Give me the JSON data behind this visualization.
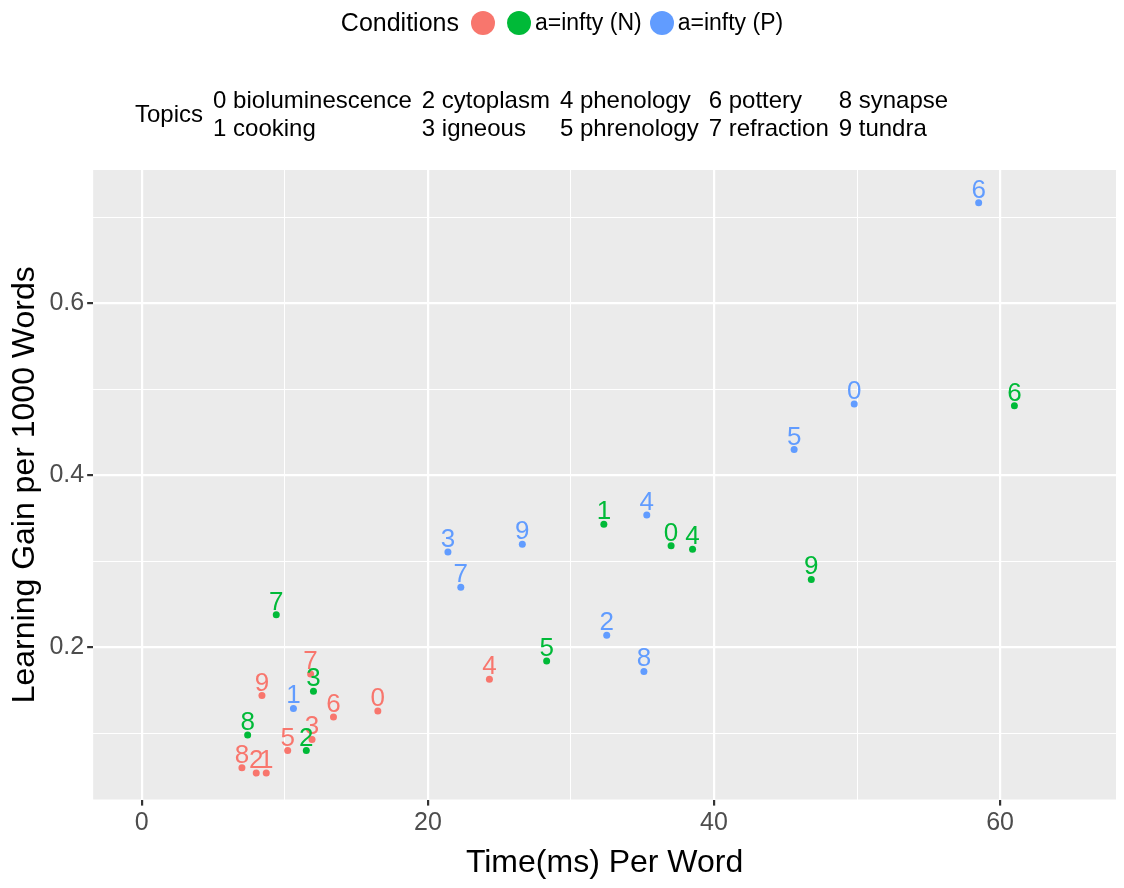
{
  "chart_data": {
    "type": "scatter",
    "xlabel": "Time(ms) Per Word",
    "ylabel": "Learning Gain per 1000 Words",
    "legend_title": "Conditions",
    "legend": "top",
    "annotations": [
      "Topics",
      "0 bioluminescence",
      "1 cooking",
      "2 cytoplasm",
      "3 igneous",
      "4 phenology",
      "5 phrenology",
      "6 pottery",
      "7 refraction",
      "8 synapse",
      "9 tundra",
      {
        "text": "0",
        "x": 16.5,
        "y": 0.126
      },
      {
        "text": "1",
        "x": 8.7,
        "y": 0.054
      },
      {
        "text": "2",
        "x": 8.0,
        "y": 0.054
      },
      {
        "text": "3",
        "x": 11.9,
        "y": 0.093
      },
      {
        "text": "4",
        "x": 24.3,
        "y": 0.163
      },
      {
        "text": "5",
        "x": 10.2,
        "y": 0.08
      },
      {
        "text": "6",
        "x": 13.4,
        "y": 0.119
      },
      {
        "text": "7",
        "x": 11.8,
        "y": 0.169
      },
      {
        "text": "8",
        "x": 7.0,
        "y": 0.06
      },
      {
        "text": "9",
        "x": 8.4,
        "y": 0.144
      },
      {
        "text": "0",
        "x": 37.0,
        "y": 0.318
      },
      {
        "text": "1",
        "x": 32.3,
        "y": 0.343
      },
      {
        "text": "2",
        "x": 11.5,
        "y": 0.08
      },
      {
        "text": "3",
        "x": 12.0,
        "y": 0.149
      },
      {
        "text": "4",
        "x": 38.5,
        "y": 0.314
      },
      {
        "text": "5",
        "x": 28.3,
        "y": 0.184
      },
      {
        "text": "6",
        "x": 61.0,
        "y": 0.481
      },
      {
        "text": "7",
        "x": 9.4,
        "y": 0.238
      },
      {
        "text": "8",
        "x": 7.4,
        "y": 0.098
      },
      {
        "text": "9",
        "x": 46.8,
        "y": 0.279
      },
      {
        "text": "0",
        "x": 49.8,
        "y": 0.483
      },
      {
        "text": "1",
        "x": 10.6,
        "y": 0.129
      },
      {
        "text": "2",
        "x": 32.5,
        "y": 0.214
      },
      {
        "text": "3",
        "x": 21.4,
        "y": 0.311
      },
      {
        "text": "4",
        "x": 35.3,
        "y": 0.354
      },
      {
        "text": "5",
        "x": 45.6,
        "y": 0.43
      },
      {
        "text": "6",
        "x": 58.5,
        "y": 0.717
      },
      {
        "text": "7",
        "x": 22.3,
        "y": 0.27
      },
      {
        "text": "8",
        "x": 35.1,
        "y": 0.172
      },
      {
        "text": "9",
        "x": 26.6,
        "y": 0.32
      }
    ],
    "xlim": [
      -3.4,
      68.1
    ],
    "ylim": [
      0.023,
      0.755
    ],
    "xticks": [
      0,
      {
        "value": 10,
        "label": null
      },
      20,
      {
        "value": 30,
        "label": null
      },
      40,
      {
        "value": 50,
        "label": null
      },
      60
    ],
    "yticks": [
      {
        "value": 0.1,
        "label": null
      },
      {
        "value": 0.2,
        "label": "0.2"
      },
      {
        "value": 0.3,
        "label": null
      },
      {
        "value": 0.4,
        "label": "0.4"
      },
      {
        "value": 0.5,
        "label": null
      },
      {
        "value": 0.6,
        "label": "0.6"
      },
      {
        "value": 0.7,
        "label": null
      }
    ],
    "grid": true,
    "series": [
      {
        "color": "#f8766d",
        "x": [
          16.5,
          8.7,
          8.0,
          11.9,
          24.3,
          10.2,
          13.4,
          11.8,
          7.0,
          8.4
        ],
        "values": [
          0.126,
          0.054,
          0.054,
          0.093,
          0.163,
          0.08,
          0.119,
          0.169,
          0.06,
          0.144
        ]
      },
      {
        "name": "a=infty (N)",
        "color": "#00ba38",
        "x": [
          37.0,
          32.3,
          11.5,
          12.0,
          38.5,
          28.3,
          61.0,
          9.4,
          7.4,
          46.8
        ],
        "values": [
          0.318,
          0.343,
          0.08,
          0.149,
          0.314,
          0.184,
          0.481,
          0.238,
          0.098,
          0.279
        ]
      },
      {
        "name": "a=infty (P)",
        "color": "#619cff",
        "x": [
          49.8,
          10.6,
          32.5,
          21.4,
          35.3,
          45.6,
          58.5,
          22.3,
          35.1,
          26.6
        ],
        "values": [
          0.483,
          0.129,
          0.214,
          0.311,
          0.354,
          0.43,
          0.717,
          0.27,
          0.172,
          0.32
        ]
      }
    ]
  }
}
